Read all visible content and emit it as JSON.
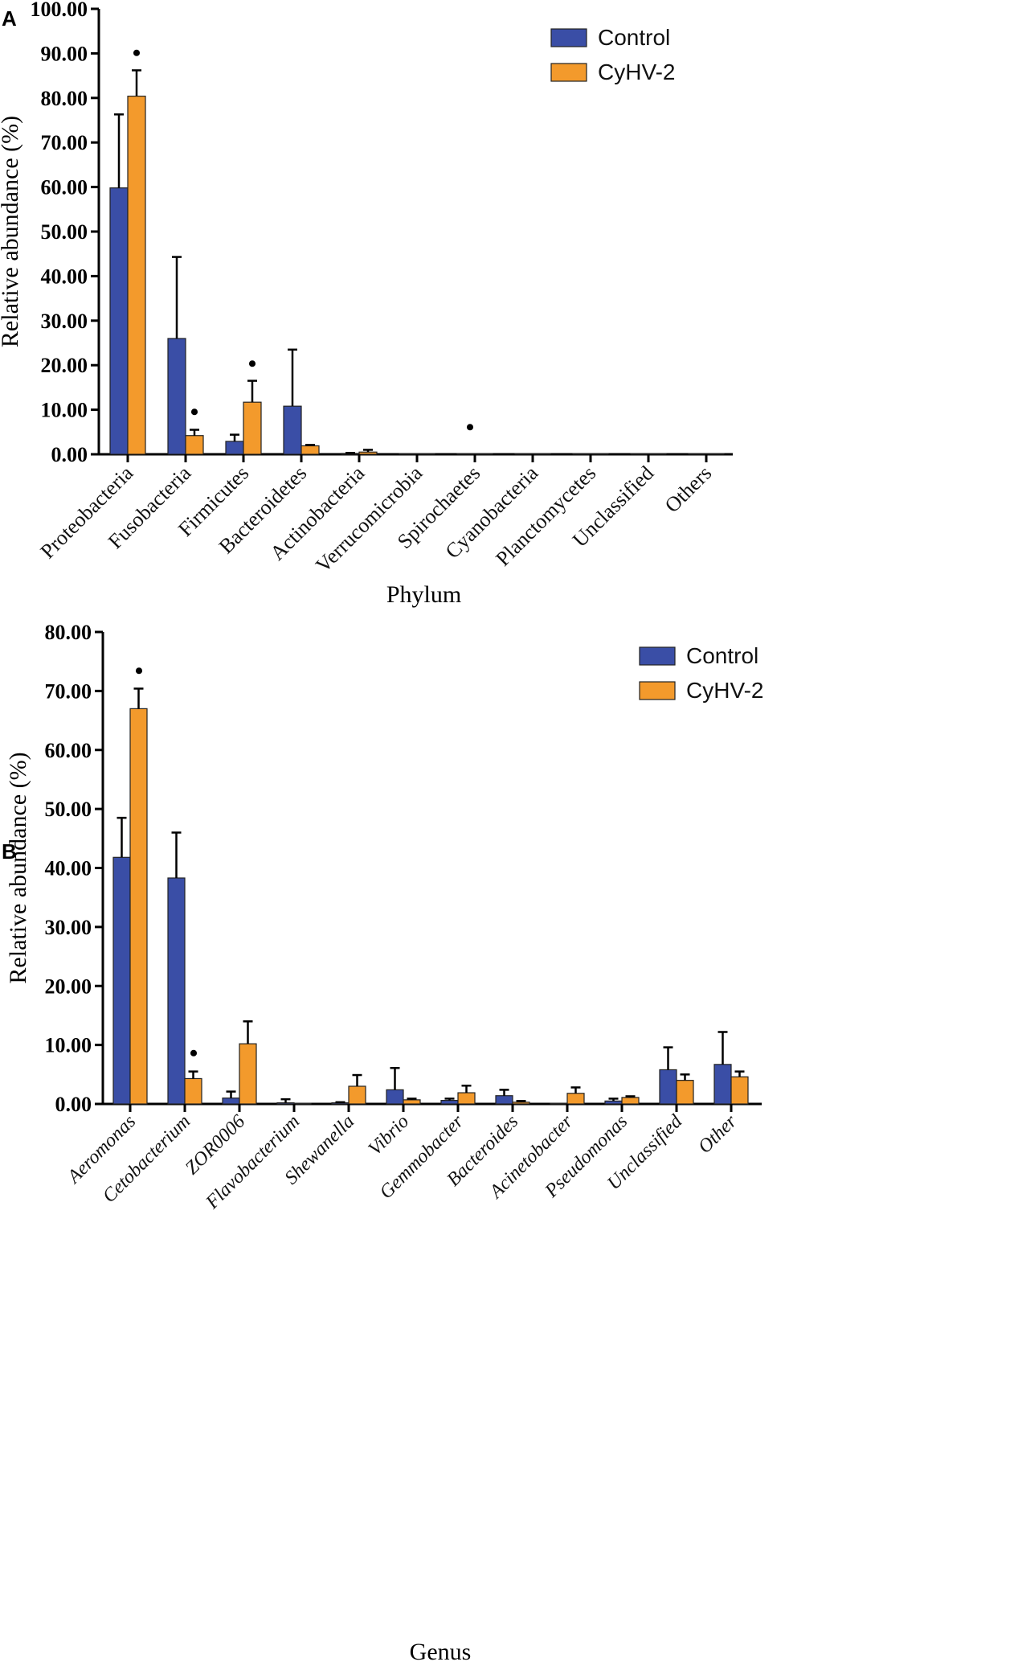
{
  "chart_data": [
    {
      "panel": "A",
      "type": "bar",
      "xlabel": "Phylum",
      "ylabel": "Relative abundance (%)",
      "ylim": [
        0,
        100
      ],
      "yticks": [
        "0.00",
        "10.00",
        "20.00",
        "30.00",
        "40.00",
        "50.00",
        "60.00",
        "70.00",
        "80.00",
        "90.00",
        "100.00"
      ],
      "categories": [
        "Proteobacteria",
        "Fusobacteria",
        "Firmicutes",
        "Bacteroidetes",
        "Actinobacteria",
        "Verrucomicrobia",
        "Spirochaetes",
        "Cyanobacteria",
        "Planctomycetes",
        "Unclassified",
        "Others"
      ],
      "series": [
        {
          "name": "Control",
          "color": "#3a4ea6",
          "values": [
            59.8,
            26.0,
            2.9,
            10.8,
            0.2,
            0.1,
            0.05,
            0.05,
            0.05,
            0.05,
            0.05
          ],
          "errors": [
            16.5,
            18.3,
            1.5,
            12.7,
            0.1,
            0,
            0,
            0,
            0,
            0,
            0
          ]
        },
        {
          "name": "CyHV-2",
          "color": "#f39a2c",
          "values": [
            80.4,
            4.2,
            11.7,
            1.9,
            0.5,
            0.05,
            0.05,
            0.05,
            0.05,
            0.05,
            0.05
          ],
          "errors": [
            5.8,
            1.3,
            4.8,
            0.2,
            0.5,
            0,
            0,
            0,
            0,
            0,
            0
          ]
        }
      ],
      "significance": [
        {
          "category": "Proteobacteria",
          "at": 89.8
        },
        {
          "category": "Fusobacteria",
          "at": 9.2
        },
        {
          "category": "Firmicutes",
          "at": 20.0
        },
        {
          "category": "Spirochaetes",
          "at": 5.8
        }
      ],
      "legend": "top-right"
    },
    {
      "panel": "B",
      "type": "bar",
      "xlabel": "Genus",
      "ylabel": "Relative abundance (%)",
      "ylim": [
        0,
        80
      ],
      "yticks": [
        "0.00",
        "10.00",
        "20.00",
        "30.00",
        "40.00",
        "50.00",
        "60.00",
        "70.00",
        "80.00"
      ],
      "categories": [
        "Aeromonas",
        "Cetobacterium",
        "ZOR0006",
        "Flavobacterium",
        "Shewanella",
        "Vibrio",
        "Gemmobacter",
        "Bacteroides",
        "Acinetobacter",
        "Pseudomonas",
        "Unclassified",
        "Other"
      ],
      "series": [
        {
          "name": "Control",
          "color": "#3a4ea6",
          "values": [
            41.8,
            38.3,
            1.0,
            0.2,
            0.2,
            2.4,
            0.6,
            1.4,
            0.1,
            0.5,
            5.8,
            6.7
          ],
          "errors": [
            6.7,
            7.7,
            1.1,
            0.6,
            0.1,
            3.7,
            0.3,
            1.0,
            0,
            0.4,
            3.8,
            5.5
          ]
        },
        {
          "name": "CyHV-2",
          "color": "#f39a2c",
          "values": [
            67.0,
            4.3,
            10.2,
            0.05,
            3.0,
            0.7,
            1.9,
            0.3,
            1.8,
            1.1,
            4.0,
            4.6
          ],
          "errors": [
            3.4,
            1.2,
            3.8,
            0,
            1.9,
            0.2,
            1.2,
            0.2,
            1.0,
            0.2,
            1.0,
            0.9
          ]
        }
      ],
      "significance": [
        {
          "category": "Aeromonas",
          "at": 73.2
        },
        {
          "category": "Cetobacterium",
          "at": 8.4
        }
      ],
      "legend": "top-right"
    }
  ],
  "panels": [
    {
      "letter": "A"
    },
    {
      "letter": "B"
    }
  ],
  "significance_mark": "•"
}
